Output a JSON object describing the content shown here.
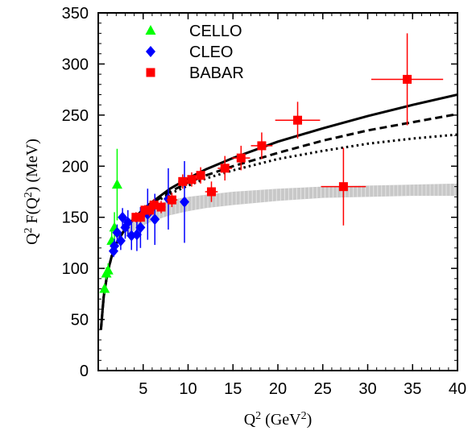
{
  "chart_data": {
    "type": "scatter",
    "title": "",
    "xlabel": "Q^2 (GeV^2)",
    "ylabel": "Q^2 F(Q^2) (MeV)",
    "xlim": [
      0,
      40
    ],
    "ylim": [
      0,
      350
    ],
    "xticks": [
      5,
      10,
      15,
      20,
      25,
      30,
      35,
      40
    ],
    "yticks": [
      0,
      50,
      100,
      150,
      200,
      250,
      300,
      350
    ],
    "grid": false,
    "legend": "top-left",
    "series": [
      {
        "name": "CELLO",
        "marker": "triangle",
        "color": "#00ff00",
        "points": [
          {
            "x": 0.7,
            "y": 80,
            "yerr": 5
          },
          {
            "x": 0.9,
            "y": 95,
            "yerr": 6
          },
          {
            "x": 1.1,
            "y": 98,
            "yerr": 7
          },
          {
            "x": 1.5,
            "y": 127,
            "yerr": 10
          },
          {
            "x": 1.8,
            "y": 140,
            "yerr": 15
          },
          {
            "x": 2.1,
            "y": 182,
            "yerr": 35
          }
        ]
      },
      {
        "name": "CLEO",
        "marker": "diamond",
        "color": "#0000ff",
        "points": [
          {
            "x": 1.7,
            "y": 117,
            "yerr": 6
          },
          {
            "x": 1.8,
            "y": 122,
            "yerr": 7
          },
          {
            "x": 2.1,
            "y": 135,
            "yerr": 8
          },
          {
            "x": 2.5,
            "y": 127,
            "yerr": 9
          },
          {
            "x": 2.7,
            "y": 150,
            "yerr": 9
          },
          {
            "x": 3.0,
            "y": 140,
            "yerr": 11
          },
          {
            "x": 3.3,
            "y": 145,
            "yerr": 12
          },
          {
            "x": 3.7,
            "y": 132,
            "yerr": 14
          },
          {
            "x": 4.3,
            "y": 133,
            "yerr": 16
          },
          {
            "x": 4.7,
            "y": 140,
            "yerr": 20
          },
          {
            "x": 5.5,
            "y": 153,
            "yerr": 25
          },
          {
            "x": 6.3,
            "y": 148,
            "yerr": 25
          },
          {
            "x": 7.8,
            "y": 168,
            "yerr": 30
          },
          {
            "x": 9.6,
            "y": 165,
            "yerr": 40
          }
        ]
      },
      {
        "name": "BABAR",
        "marker": "square",
        "color": "#ff0000",
        "points": [
          {
            "x": 4.2,
            "y": 150,
            "yerr": 5,
            "xerr": 0.3
          },
          {
            "x": 4.7,
            "y": 150,
            "yerr": 5,
            "xerr": 0.3
          },
          {
            "x": 5.2,
            "y": 157,
            "yerr": 5,
            "xerr": 0.3
          },
          {
            "x": 5.7,
            "y": 157,
            "yerr": 6,
            "xerr": 0.3
          },
          {
            "x": 6.2,
            "y": 162,
            "yerr": 6,
            "xerr": 0.3
          },
          {
            "x": 7.0,
            "y": 160,
            "yerr": 6,
            "xerr": 0.5
          },
          {
            "x": 8.2,
            "y": 167,
            "yerr": 7,
            "xerr": 0.6
          },
          {
            "x": 9.4,
            "y": 185,
            "yerr": 7,
            "xerr": 0.5
          },
          {
            "x": 10.4,
            "y": 187,
            "yerr": 7,
            "xerr": 0.5
          },
          {
            "x": 11.4,
            "y": 191,
            "yerr": 8,
            "xerr": 0.5
          },
          {
            "x": 12.6,
            "y": 175,
            "yerr": 10,
            "xerr": 0.7
          },
          {
            "x": 14.1,
            "y": 198,
            "yerr": 12,
            "xerr": 0.8
          },
          {
            "x": 15.9,
            "y": 208,
            "yerr": 12,
            "xerr": 1.0
          },
          {
            "x": 18.2,
            "y": 220,
            "yerr": 13,
            "xerr": 1.2
          },
          {
            "x": 22.2,
            "y": 245,
            "yerr": 18,
            "xerr": 2.5
          },
          {
            "x": 27.3,
            "y": 180,
            "yerr": 38,
            "xerr": 2.5
          },
          {
            "x": 34.4,
            "y": 285,
            "yerr": 45,
            "xerr": 4.0
          }
        ]
      }
    ],
    "curves": [
      {
        "style": "solid",
        "color": "#000000",
        "x": [
          0.3,
          0.6,
          1,
          1.5,
          2,
          3,
          4,
          5,
          6,
          8,
          10,
          12,
          15,
          20,
          25,
          30,
          35,
          40
        ],
        "y": [
          40,
          72,
          95,
          112,
          124,
          139,
          149,
          158,
          165,
          178,
          188,
          197,
          208,
          224,
          237,
          249,
          260,
          270
        ]
      },
      {
        "style": "dashed",
        "color": "#000000",
        "x": [
          0.3,
          0.6,
          1,
          1.5,
          2,
          3,
          4,
          5,
          6,
          8,
          10,
          12,
          15,
          20,
          25,
          30,
          35,
          40
        ],
        "y": [
          40,
          72,
          95,
          112,
          124,
          139,
          149,
          157,
          164,
          175,
          184,
          191,
          200,
          213,
          225,
          235,
          243,
          251
        ]
      },
      {
        "style": "dotted",
        "color": "#000000",
        "x": [
          0.3,
          0.6,
          1,
          1.5,
          2,
          3,
          4,
          5,
          6,
          8,
          10,
          12,
          15,
          20,
          25,
          30,
          35,
          40
        ],
        "y": [
          40,
          72,
          95,
          112,
          124,
          139,
          149,
          157,
          163,
          173,
          181,
          188,
          196,
          207,
          215,
          222,
          227,
          231
        ]
      }
    ],
    "band": {
      "color": "#c8c8c8",
      "x": [
        3,
        4,
        5,
        6,
        8,
        10,
        12,
        15,
        20,
        25,
        30,
        35,
        40
      ],
      "ylow": [
        130,
        137,
        142,
        146,
        152,
        156,
        159,
        162,
        166,
        169,
        170,
        171,
        171
      ],
      "yhigh": [
        145,
        152,
        157,
        161,
        167,
        170,
        172,
        175,
        178,
        180,
        181,
        182,
        183
      ]
    }
  }
}
